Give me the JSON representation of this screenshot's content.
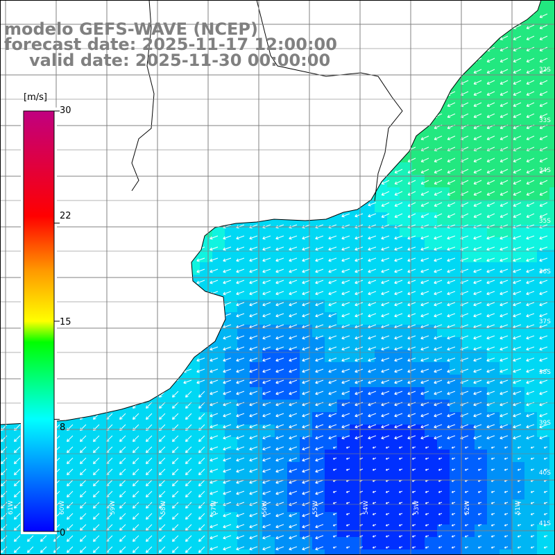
{
  "map": {
    "title_line1": "modelo GEFS-WAVE (NCEP)",
    "title_line2": "forecast date: 2025-11-17 12:00:00",
    "title_line3": "valid date: 2025-11-30 00:00:00",
    "variable": "wind speed and direction",
    "lon_range": [
      "61W",
      "51W"
    ],
    "lat_range": [
      "31S",
      "41S"
    ]
  },
  "colorbar": {
    "unit": "[m/s]",
    "ticks": [
      "30",
      "22",
      "15",
      "8",
      "0"
    ],
    "tick_values": [
      30,
      22,
      15,
      8,
      0
    ],
    "min": 0,
    "max": 30,
    "colors": [
      "#0000ff",
      "#00ffff",
      "#00ff00",
      "#ffff00",
      "#ff8000",
      "#ff0000",
      "#c00080"
    ]
  },
  "grid": {
    "lat_labels": [
      "32S",
      "33S",
      "34S",
      "35S",
      "36S",
      "37S",
      "38S",
      "39S",
      "40S",
      "41S"
    ],
    "lon_labels": [
      "61W",
      "60W",
      "59W",
      "58W",
      "57W",
      "56W",
      "55W",
      "54W",
      "53W",
      "52W",
      "51W"
    ]
  }
}
